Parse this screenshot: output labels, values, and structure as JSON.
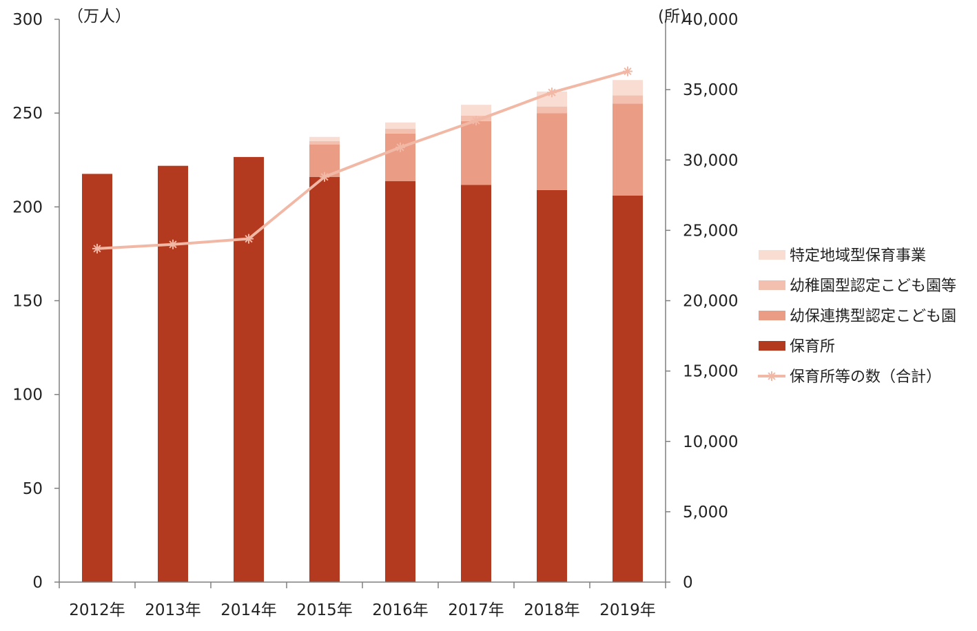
{
  "chart_data": {
    "type": "bar",
    "stacked": true,
    "categories": [
      "2012年",
      "2013年",
      "2014年",
      "2015年",
      "2016年",
      "2017年",
      "2018年",
      "2019年"
    ],
    "left_axis": {
      "unit_label": "（万人）",
      "ylim": [
        0,
        300
      ],
      "ticks": [
        "0",
        "50",
        "100",
        "150",
        "200",
        "250",
        "300"
      ]
    },
    "right_axis": {
      "unit_label": "(所)",
      "ylim": [
        0,
        40000
      ],
      "ticks": [
        "0",
        "5,000",
        "10,000",
        "15,000",
        "20,000",
        "25,000",
        "30,000",
        "35,000",
        "40,000"
      ]
    },
    "series": [
      {
        "name": "保育所",
        "axis": "left",
        "color": "#b33a1e",
        "values": [
          217.6,
          221.9,
          226.6,
          216.0,
          213.7,
          211.7,
          209.0,
          206.0
        ]
      },
      {
        "name": "幼保連携型認定こども園",
        "axis": "left",
        "color": "#ea9c85",
        "values": [
          0,
          0,
          0,
          17.3,
          25.4,
          34.0,
          41.0,
          49.1
        ]
      },
      {
        "name": "幼稚園型認定こども園等",
        "axis": "left",
        "color": "#f3bfae",
        "values": [
          0,
          0,
          0,
          1.7,
          2.5,
          2.9,
          3.5,
          4.3
        ]
      },
      {
        "name": "特定地域型保育事業",
        "axis": "left",
        "color": "#f9dcd2",
        "values": [
          0,
          0,
          0,
          2.3,
          3.4,
          5.8,
          8.0,
          8.2
        ]
      },
      {
        "name": "保育所等の数（合計）",
        "axis": "right",
        "type": "line",
        "color": "#f2b8a6",
        "values": [
          23700,
          24000,
          24400,
          28800,
          30900,
          32800,
          34800,
          36300
        ]
      }
    ],
    "legend": {
      "position": "right",
      "order": [
        "特定地域型保育事業",
        "幼稚園型認定こども園等",
        "幼保連携型認定こども園",
        "保育所",
        "保育所等の数（合計）"
      ]
    },
    "grid": false
  }
}
